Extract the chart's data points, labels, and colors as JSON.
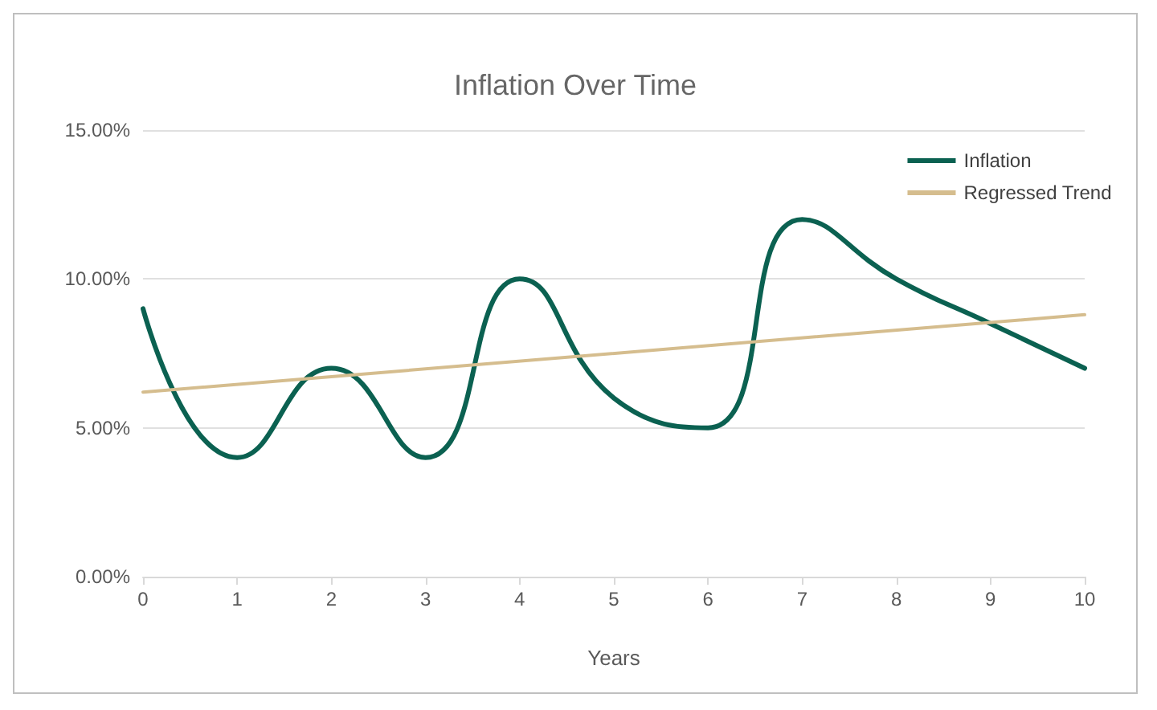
{
  "chart_data": {
    "type": "line",
    "title": "Inflation Over Time",
    "xlabel": "Years",
    "x": [
      0,
      1,
      2,
      3,
      4,
      5,
      6,
      7,
      8,
      9,
      10
    ],
    "series": [
      {
        "name": "Inflation",
        "color": "#0b6151",
        "values": [
          9,
          4,
          7,
          4,
          10,
          6,
          5,
          12,
          10,
          8.5,
          7
        ]
      },
      {
        "name": "Regressed Trend",
        "color": "#d5bd8e",
        "x": [
          0,
          10
        ],
        "values": [
          6.2,
          8.8
        ]
      }
    ],
    "xlim": [
      0,
      10
    ],
    "xticks": [
      0,
      1,
      2,
      3,
      4,
      5,
      6,
      7,
      8,
      9,
      10
    ],
    "ylim": [
      0,
      15
    ],
    "yticks": [
      {
        "value": 0,
        "label": "0.00%"
      },
      {
        "value": 5,
        "label": "5.00%"
      },
      {
        "value": 10,
        "label": "10.00%"
      },
      {
        "value": 15,
        "label": "15.00%"
      }
    ],
    "grid": "y",
    "legend": "top right",
    "marker": "none",
    "line_style": "solid"
  }
}
